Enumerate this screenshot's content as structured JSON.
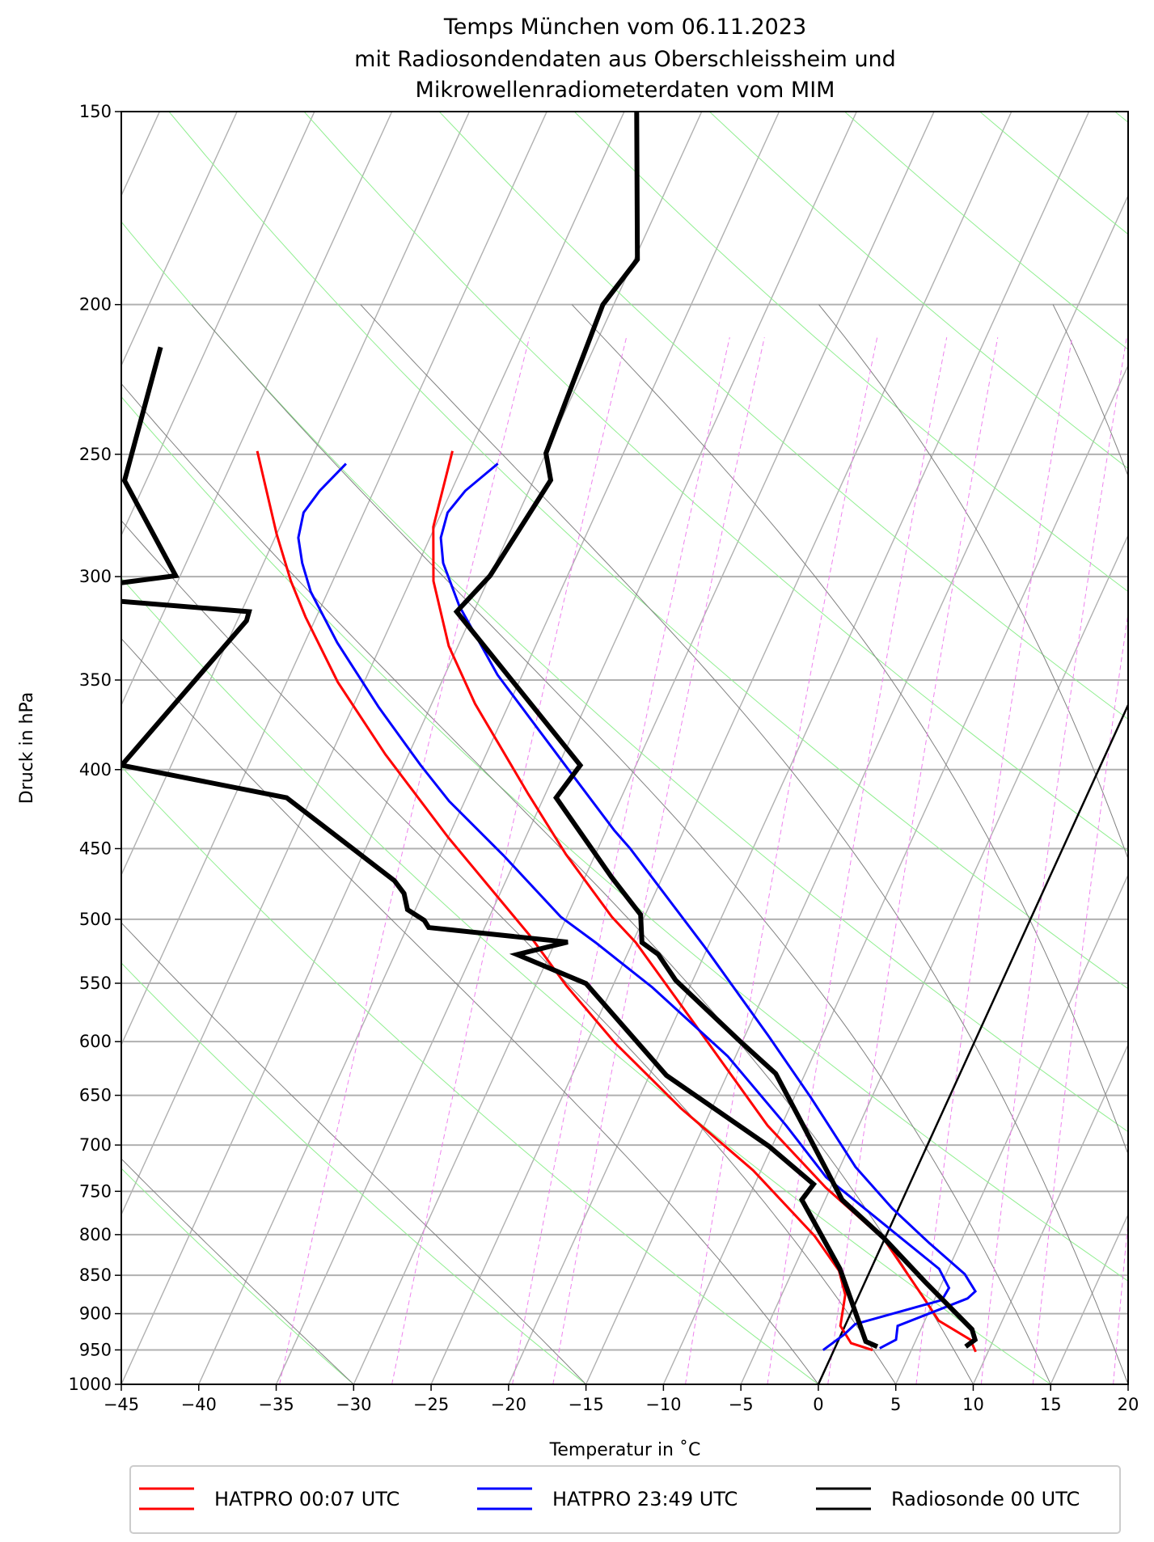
{
  "chart_data": {
    "type": "line",
    "diagram": "skew-T log-p",
    "title": [
      "Temps München vom 06.11.2023",
      "mit Radiosondendaten aus Oberschleissheim und",
      "Mikrowellenradiometerdaten vom MIM"
    ],
    "xlabel": "Temperatur in ˚C",
    "ylabel": "Druck in hPa",
    "xlim": [
      -45,
      20
    ],
    "ylim": [
      1000,
      150
    ],
    "y_scale": "log",
    "grid": true,
    "legend_placement": "bottom",
    "xticks": [
      "-45",
      "-40",
      "-35",
      "-30",
      "-25",
      "-20",
      "-15",
      "-10",
      "-5",
      "0",
      "5",
      "10",
      "15",
      "20"
    ],
    "yticks": [
      "150",
      "200",
      "250",
      "300",
      "350",
      "400",
      "450",
      "500",
      "550",
      "600",
      "650",
      "700",
      "750",
      "800",
      "850",
      "900",
      "950",
      "1000"
    ],
    "point_format": "[pressure hPa, temperature °C]",
    "series": [
      {
        "name": "HATPRO 00:07 UTC",
        "color": "#ff0000",
        "temperature": [
          [
            248.8,
            -51.1
          ],
          [
            278.6,
            -50.1
          ],
          [
            302,
            -48.5
          ],
          [
            332.7,
            -45.6
          ],
          [
            362.6,
            -42.2
          ],
          [
            414.9,
            -36.1
          ],
          [
            453.8,
            -31.9
          ],
          [
            498.1,
            -27.1
          ],
          [
            517.5,
            -24.8
          ],
          [
            585.5,
            -18.5
          ],
          [
            679.9,
            -10.9
          ],
          [
            746,
            -5.3
          ],
          [
            806,
            0.0
          ],
          [
            879.8,
            4.3
          ],
          [
            909.5,
            5.9
          ],
          [
            935.6,
            8.5
          ],
          [
            952.7,
            9.2
          ]
        ],
        "dewpoint": [
          [
            248.8,
            -63.7
          ],
          [
            281.6,
            -60.0
          ],
          [
            302,
            -57.7
          ],
          [
            318.6,
            -55.7
          ],
          [
            351.1,
            -51.7
          ],
          [
            391,
            -46.5
          ],
          [
            442.5,
            -40.0
          ],
          [
            511.7,
            -31.9
          ],
          [
            552.1,
            -28.0
          ],
          [
            600.9,
            -23.2
          ],
          [
            662.7,
            -17.0
          ],
          [
            727,
            -10.5
          ],
          [
            801.7,
            -4.6
          ],
          [
            844.4,
            -2.0
          ],
          [
            875.1,
            -0.9
          ],
          [
            916.5,
            -0.3
          ],
          [
            940.5,
            0.9
          ],
          [
            950.3,
            2.5
          ]
        ]
      },
      {
        "name": "HATPRO 23:49 UTC",
        "color": "#0000ff",
        "temperature": [
          [
            253.5,
            -47.8
          ],
          [
            264,
            -49.1
          ],
          [
            272.7,
            -49.6
          ],
          [
            283.1,
            -49.3
          ],
          [
            294,
            -48.4
          ],
          [
            313.4,
            -46.1
          ],
          [
            347.3,
            -41.6
          ],
          [
            399.5,
            -34.3
          ],
          [
            437.8,
            -29.5
          ],
          [
            450.1,
            -27.9
          ],
          [
            520.2,
            -20.3
          ],
          [
            594.7,
            -13.5
          ],
          [
            652.5,
            -8.9
          ],
          [
            723.3,
            -4.0
          ],
          [
            769.4,
            -0.4
          ],
          [
            810.1,
            3.0
          ],
          [
            848.4,
            6.2
          ],
          [
            870.6,
            7.4
          ],
          [
            879.8,
            7.1
          ],
          [
            893.6,
            5.7
          ],
          [
            916.5,
            3.4
          ],
          [
            935.6,
            3.7
          ],
          [
            947.7,
            2.9
          ]
        ],
        "dewpoint": [
          [
            253.5,
            -57.6
          ],
          [
            264,
            -58.5
          ],
          [
            272.7,
            -58.9
          ],
          [
            283.1,
            -58.5
          ],
          [
            294,
            -57.5
          ],
          [
            306.9,
            -56.1
          ],
          [
            331,
            -52.9
          ],
          [
            364.6,
            -48.3
          ],
          [
            397.4,
            -43.9
          ],
          [
            419.3,
            -41.0
          ],
          [
            454.6,
            -35.9
          ],
          [
            498.1,
            -30.4
          ],
          [
            517.5,
            -27.4
          ],
          [
            553.4,
            -22.4
          ],
          [
            613.3,
            -15.5
          ],
          [
            679.9,
            -9.7
          ],
          [
            734.3,
            -5.6
          ],
          [
            787.4,
            -0.5
          ],
          [
            841.9,
            4.4
          ],
          [
            866.2,
            5.6
          ],
          [
            881.9,
            5.5
          ],
          [
            914.2,
            0.6
          ],
          [
            928.4,
            0.2
          ],
          [
            950.3,
            -0.7
          ]
        ]
      },
      {
        "name": "Radiosonde 00 UTC",
        "color": "#000000",
        "temperature": [
          [
            150,
            -49.2
          ],
          [
            187,
            -44.8
          ],
          [
            200,
            -45.7
          ],
          [
            249.6,
            -45.0
          ],
          [
            259.8,
            -43.9
          ],
          [
            299.6,
            -45.0
          ],
          [
            316.1,
            -46.1
          ],
          [
            397.4,
            -33.6
          ],
          [
            417.1,
            -34.2
          ],
          [
            469.4,
            -28.3
          ],
          [
            496.6,
            -25.3
          ],
          [
            517.5,
            -24.4
          ],
          [
            526.8,
            -23.0
          ],
          [
            547.6,
            -21.1
          ],
          [
            599.3,
            -15.2
          ],
          [
            629.3,
            -11.9
          ],
          [
            679.9,
            -8.6
          ],
          [
            759.5,
            -3.9
          ],
          [
            803.8,
            -0.1
          ],
          [
            857.3,
            3.8
          ],
          [
            921.3,
            8.3
          ],
          [
            935.6,
            8.8
          ],
          [
            945.4,
            8.4
          ]
        ],
        "dewpoint": [
          [
            213.1,
            -73.0
          ],
          [
            260,
            -71.4
          ],
          [
            299.6,
            -65.3
          ],
          [
            308,
            -74.0
          ],
          [
            316.1,
            -59.5
          ],
          [
            320.4,
            -59.4
          ],
          [
            397.4,
            -63.2
          ],
          [
            417.1,
            -51.6
          ],
          [
            472,
            -42.2
          ],
          [
            481.1,
            -41.2
          ],
          [
            492.8,
            -40.5
          ],
          [
            500.8,
            -39.1
          ],
          [
            506.2,
            -38.6
          ],
          [
            517.3,
            -29.2
          ],
          [
            527,
            -32.1
          ],
          [
            550.2,
            -26.8
          ],
          [
            631,
            -18.9
          ],
          [
            701.2,
            -10.2
          ],
          [
            742.1,
            -6.2
          ],
          [
            759.5,
            -6.5
          ],
          [
            841.9,
            -2.0
          ],
          [
            938.1,
            1.8
          ],
          [
            945.4,
            2.7
          ]
        ]
      }
    ],
    "background": {
      "isotherm_step": 5,
      "isotherm_color": "#b0b0b0",
      "isobar_color": "#b0b0b0",
      "zero_isotherm_color": "#000000",
      "dry_adiabat_color": "#90ee90",
      "dry_adiabats_T0_at_1000": [
        -45,
        -30,
        -15,
        0,
        15,
        30,
        45,
        60,
        75,
        90,
        105,
        120,
        135,
        150,
        165,
        180
      ],
      "moist_adiabat_color": "#808080",
      "moist_adiabats_T0_at_1000": [
        -45,
        -30,
        -15,
        0,
        5,
        10,
        15,
        20,
        25,
        30,
        35
      ],
      "moist_adiabat_top_hPa": 200,
      "mixing_ratio_color": "#ee82ee",
      "mixing_ratios_g_per_kg": [
        0.2,
        0.4,
        0.8,
        1,
        2,
        3,
        4,
        6,
        8,
        10,
        14
      ],
      "mixing_ratio_top_hPa": 205
    }
  }
}
